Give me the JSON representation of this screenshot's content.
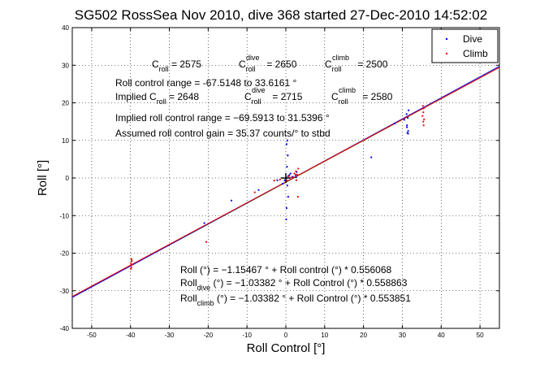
{
  "chart_data": {
    "type": "scatter",
    "title": "SG502 RossSea Nov 2010, dive 368 started 27-Dec-2010 14:52:02",
    "xlabel": "Roll Control [°]",
    "ylabel": "Roll [°]",
    "xlim": [
      -55,
      55
    ],
    "ylim": [
      -40,
      40
    ],
    "xticks": [
      -50,
      -40,
      -30,
      -20,
      -10,
      0,
      10,
      20,
      30,
      40,
      50
    ],
    "yticks": [
      -40,
      -30,
      -20,
      -10,
      0,
      10,
      20,
      30,
      40
    ],
    "grid": true,
    "legend": {
      "placement": "top-right",
      "entries": [
        "Dive",
        "Climb"
      ]
    },
    "series": [
      {
        "name": "Dive",
        "color": "#0000ff",
        "points": [
          [
            -0.8,
            -1.5
          ],
          [
            -0.3,
            -0.6
          ],
          [
            0.2,
            0.1
          ],
          [
            0.6,
            0.5
          ],
          [
            0.9,
            0.8
          ],
          [
            0.4,
            -2
          ],
          [
            0.6,
            -5
          ],
          [
            0.2,
            -8
          ],
          [
            0.1,
            -11
          ],
          [
            0.3,
            3
          ],
          [
            0.5,
            6
          ],
          [
            0.2,
            9
          ],
          [
            0.4,
            10
          ],
          [
            1.2,
            1.2
          ],
          [
            1.8,
            0.3
          ],
          [
            2.5,
            0.8
          ],
          [
            2.8,
            1.6
          ],
          [
            2.6,
            0.2
          ],
          [
            -2.2,
            -0.6
          ],
          [
            -7,
            -3.2
          ],
          [
            -14,
            -6
          ],
          [
            -21,
            -12
          ],
          [
            22,
            5.5
          ],
          [
            28,
            14.5
          ],
          [
            30.5,
            15.5
          ],
          [
            31.2,
            13.5
          ],
          [
            31.5,
            12.5
          ],
          [
            31.2,
            14
          ],
          [
            31.4,
            16
          ],
          [
            31.6,
            18
          ],
          [
            31.1,
            17
          ],
          [
            31.3,
            12
          ],
          [
            31.5,
            11.8
          ]
        ]
      },
      {
        "name": "Climb",
        "color": "#ff0000",
        "points": [
          [
            -39.8,
            -21.5
          ],
          [
            -39.7,
            -22.2
          ],
          [
            -39.9,
            -22.8
          ],
          [
            -39.7,
            -23.2
          ],
          [
            -39.8,
            -23.8
          ],
          [
            -39.9,
            -24.2
          ],
          [
            -39.7,
            -21.8
          ],
          [
            -20.5,
            -17
          ],
          [
            -8,
            -3.8
          ],
          [
            -3,
            -0.7
          ],
          [
            -1.5,
            -0.4
          ],
          [
            0.2,
            -0.6
          ],
          [
            0.8,
            0.5
          ],
          [
            1.5,
            0.2
          ],
          [
            2.2,
            1.2
          ],
          [
            2.6,
            1.8
          ],
          [
            2.9,
            0.9
          ],
          [
            2.7,
            -0.6
          ],
          [
            3.1,
            -5
          ],
          [
            3.2,
            2.5
          ],
          [
            35.2,
            16.5
          ],
          [
            35.4,
            17.5
          ],
          [
            35.5,
            18.5
          ],
          [
            35.3,
            19.2
          ],
          [
            35.6,
            15.6
          ],
          [
            35.4,
            15
          ],
          [
            35.5,
            14
          ]
        ]
      }
    ],
    "fit_lines": [
      {
        "label": "Roll (°) = −1.15467 ° + Roll control (°) * 0.556068",
        "intercept": -1.15467,
        "slope": 0.556068,
        "color": "#008000"
      },
      {
        "label": "Roll dive (°) = −1.03382 ° + Roll Control (°) * 0.558863",
        "intercept": -1.03382,
        "slope": 0.558863,
        "color": "#0000ff"
      },
      {
        "label": "Roll climb (°) = −1.03382 ° + Roll Control (°) * 0.553851",
        "intercept": -1.03382,
        "slope": 0.553851,
        "color": "#ff0000"
      }
    ],
    "center_marker": {
      "x": 0,
      "y": 0,
      "color": "#000000"
    },
    "annotations": {
      "c_roll": {
        "base": "C",
        "sub": "roll",
        "value": " = 2575"
      },
      "c_roll_dive": {
        "base": "C",
        "sub": "roll",
        "sup": "dive",
        "value": " = 2650"
      },
      "c_roll_climb": {
        "base": "C",
        "sub": "roll",
        "sup": "climb",
        "value": " = 2500"
      },
      "roll_control_range": "Roll control range = -67.5148 to 33.6161 °",
      "implied_c_roll": {
        "prefix": "Implied C",
        "sub": "roll",
        "value": " = 2648"
      },
      "implied_c_roll_dive": {
        "base": "C",
        "sub": "roll",
        "sup": "dive",
        "value": " = 2715"
      },
      "implied_c_roll_climb": {
        "base": "C",
        "sub": "roll",
        "sup": "climb",
        "value": " = 2580"
      },
      "implied_roll_control_range": "Implied roll control range = −69.5913 to 31.5396 °",
      "assumed_gain": "Assumed roll control gain = 35.37 counts/° to stbd",
      "fit_all": "Roll (°) = −1.15467 ° + Roll control (°) * 0.556068",
      "fit_dive": {
        "base": "Roll",
        "sub": "dive",
        "rest": " (°) = −1.03382 ° + Roll Control (°) * 0.558863"
      },
      "fit_climb": {
        "base": "Roll",
        "sub": "climb",
        "rest": " (°) = −1.03382 ° + Roll Control (°) * 0.553851"
      }
    }
  }
}
